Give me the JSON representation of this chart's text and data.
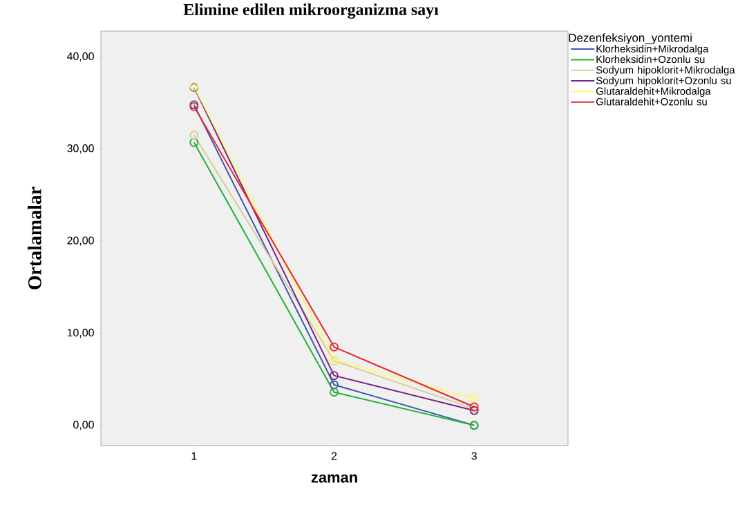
{
  "chart_data": {
    "type": "line",
    "title": "Elimine edilen mikroorganizma sayı",
    "xlabel": "zaman",
    "ylabel": "Ortalamalar",
    "legend_title": "Dezenfeksiyon_yontemi",
    "categories": [
      "1",
      "2",
      "3"
    ],
    "series": [
      {
        "name": "Klorheksidin+Mikrodalga",
        "color": "#3e58ac",
        "values": [
          34.8,
          4.4,
          0.0
        ]
      },
      {
        "name": "Klorheksidin+Ozonlu su",
        "color": "#1fb035",
        "values": [
          30.7,
          3.6,
          0.0
        ]
      },
      {
        "name": "Sodyum hipoklorit+Mikrodalga",
        "color": "#d3ce97",
        "values": [
          31.5,
          7.0,
          1.8
        ]
      },
      {
        "name": "Sodyum hipoklorit+Ozonlu su",
        "color": "#7a2282",
        "values": [
          36.7,
          5.4,
          1.6
        ]
      },
      {
        "name": "Glutaraldehit+Mikrodalga",
        "color": "#fbf873",
        "values": [
          36.8,
          7.1,
          2.9
        ]
      },
      {
        "name": "Glutaraldehit+Ozonlu su",
        "color": "#e9262c",
        "values": [
          34.6,
          8.5,
          2.0
        ]
      }
    ],
    "ylim": [
      -2.2,
      42.8
    ],
    "yticks": [
      {
        "value": 0,
        "label": "0,00"
      },
      {
        "value": 10,
        "label": "10,00"
      },
      {
        "value": 20,
        "label": "20,00"
      },
      {
        "value": 30,
        "label": "30,00"
      },
      {
        "value": 40,
        "label": "40,00"
      }
    ],
    "legend": "right",
    "marker": "circle",
    "line_style": "solid",
    "grid": false
  }
}
